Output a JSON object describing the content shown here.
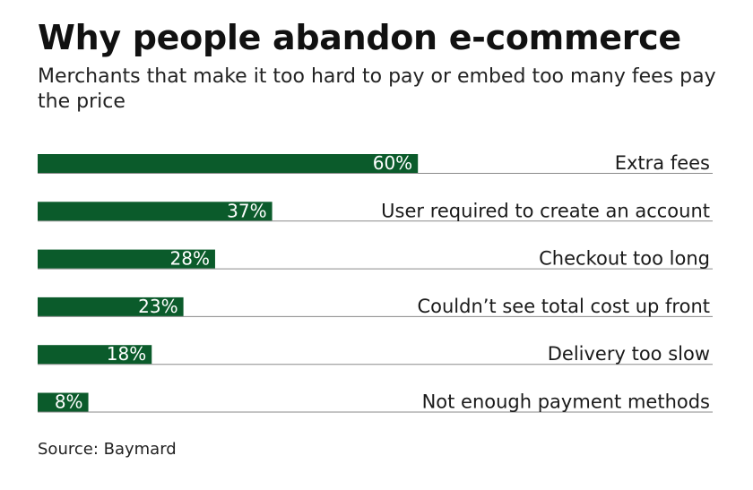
{
  "header": {
    "title": "Why people abandon e-commerce",
    "subtitle": "Merchants that make it too hard to pay or embed too many fees pay the price"
  },
  "footer": {
    "source": "Source: Baymard"
  },
  "colors": {
    "bar": "#0b5b2b",
    "bar_label": "#ffffff",
    "baseline": "#8a8a8a",
    "text": "#1a1a1a"
  },
  "chart_data": {
    "type": "bar",
    "orientation": "horizontal",
    "categories": [
      "Extra fees",
      "User required to create an account",
      "Checkout too long",
      "Couldn’t see total cost up front",
      "Delivery too slow",
      "Not enough payment methods"
    ],
    "values": [
      60,
      37,
      28,
      23,
      18,
      8
    ],
    "value_labels": [
      "60%",
      "37%",
      "28%",
      "23%",
      "18%",
      "8%"
    ],
    "unit": "%",
    "xlim": [
      0,
      100
    ],
    "grid": false,
    "legend": "none"
  }
}
